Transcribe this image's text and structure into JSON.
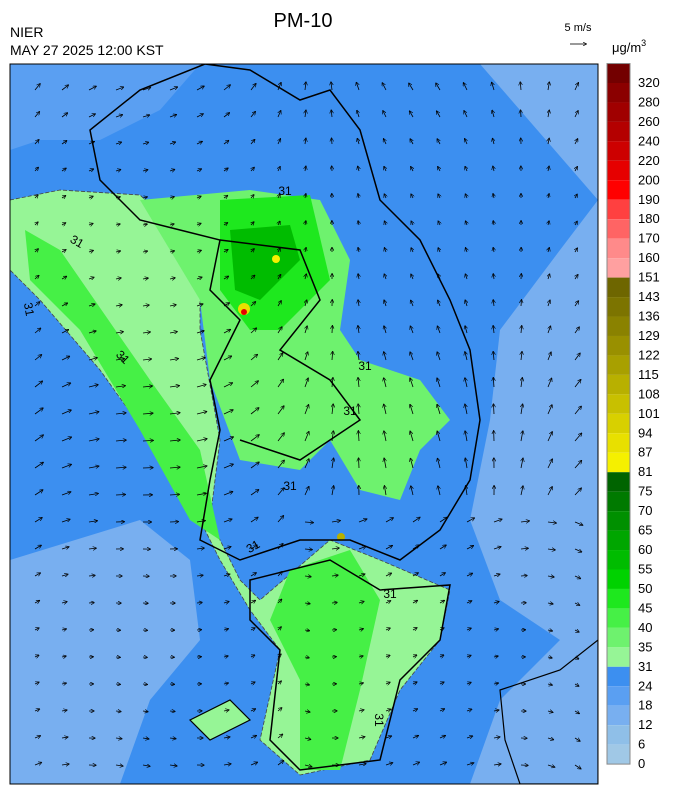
{
  "header": {
    "title": "PM-10",
    "agency": "NIER",
    "datetime": "MAY 27 2025 12:00 KST"
  },
  "wind_legend": {
    "label": "5 m/s"
  },
  "colorbar": {
    "unit": "μg/m",
    "unit_sup": "3",
    "levels": [
      {
        "value": 320,
        "color": "#730000"
      },
      {
        "value": 280,
        "color": "#8b0000"
      },
      {
        "value": 260,
        "color": "#a00000"
      },
      {
        "value": 240,
        "color": "#b40000"
      },
      {
        "value": 220,
        "color": "#cd0000"
      },
      {
        "value": 200,
        "color": "#e60000"
      },
      {
        "value": 190,
        "color": "#ff0000"
      },
      {
        "value": 180,
        "color": "#ff4040"
      },
      {
        "value": 170,
        "color": "#ff6464"
      },
      {
        "value": 160,
        "color": "#ff8a8a"
      },
      {
        "value": 151,
        "color": "#ffa0a0"
      },
      {
        "value": 143,
        "color": "#6e6600"
      },
      {
        "value": 136,
        "color": "#7c7400"
      },
      {
        "value": 129,
        "color": "#8a8200"
      },
      {
        "value": 122,
        "color": "#999000"
      },
      {
        "value": 115,
        "color": "#a8a000"
      },
      {
        "value": 108,
        "color": "#b8b000"
      },
      {
        "value": 101,
        "color": "#c8c000"
      },
      {
        "value": 94,
        "color": "#d8d000"
      },
      {
        "value": 87,
        "color": "#e8e000"
      },
      {
        "value": 81,
        "color": "#f5f000"
      },
      {
        "value": 75,
        "color": "#006400"
      },
      {
        "value": 70,
        "color": "#007a00"
      },
      {
        "value": 65,
        "color": "#009000"
      },
      {
        "value": 60,
        "color": "#00a600"
      },
      {
        "value": 55,
        "color": "#00bc00"
      },
      {
        "value": 50,
        "color": "#00d200"
      },
      {
        "value": 45,
        "color": "#1ee81e"
      },
      {
        "value": 40,
        "color": "#46f046"
      },
      {
        "value": 35,
        "color": "#6ef26e"
      },
      {
        "value": 31,
        "color": "#96f596"
      },
      {
        "value": 24,
        "color": "#3c8ff0"
      },
      {
        "value": 18,
        "color": "#5a9ff2"
      },
      {
        "value": 12,
        "color": "#78aff0"
      },
      {
        "value": 6,
        "color": "#8fbfe8"
      },
      {
        "value": 0,
        "color": "#a0c8e6"
      }
    ]
  },
  "map": {
    "contour_labels": [
      "31",
      "31",
      "31",
      "31",
      "31",
      "31",
      "31",
      "31",
      "31",
      "31"
    ]
  }
}
